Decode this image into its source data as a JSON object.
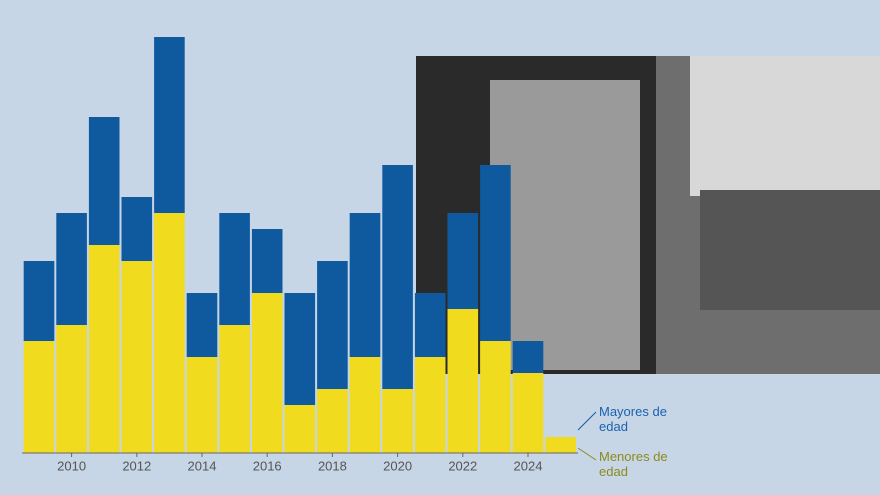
{
  "chart_data": {
    "type": "stacked-bar",
    "categories": [
      null,
      "2010",
      null,
      "2012",
      null,
      "2014",
      null,
      "2016",
      null,
      "2018",
      null,
      "2020",
      null,
      "2022",
      null,
      "2024",
      null
    ],
    "series": [
      {
        "name": "Menores de edad",
        "color": "#f0db1e",
        "values": [
          7,
          8,
          13,
          12,
          15,
          6,
          8,
          10,
          3,
          4,
          6,
          4,
          6,
          9,
          7,
          5,
          1
        ]
      },
      {
        "name": "Mayores de edad",
        "color": "#0f5a9f",
        "values": [
          5,
          7,
          8,
          4,
          11,
          4,
          7,
          4,
          7,
          8,
          9,
          14,
          4,
          6,
          11,
          2,
          0
        ]
      }
    ],
    "ylim": [
      0,
      28
    ]
  }
}
